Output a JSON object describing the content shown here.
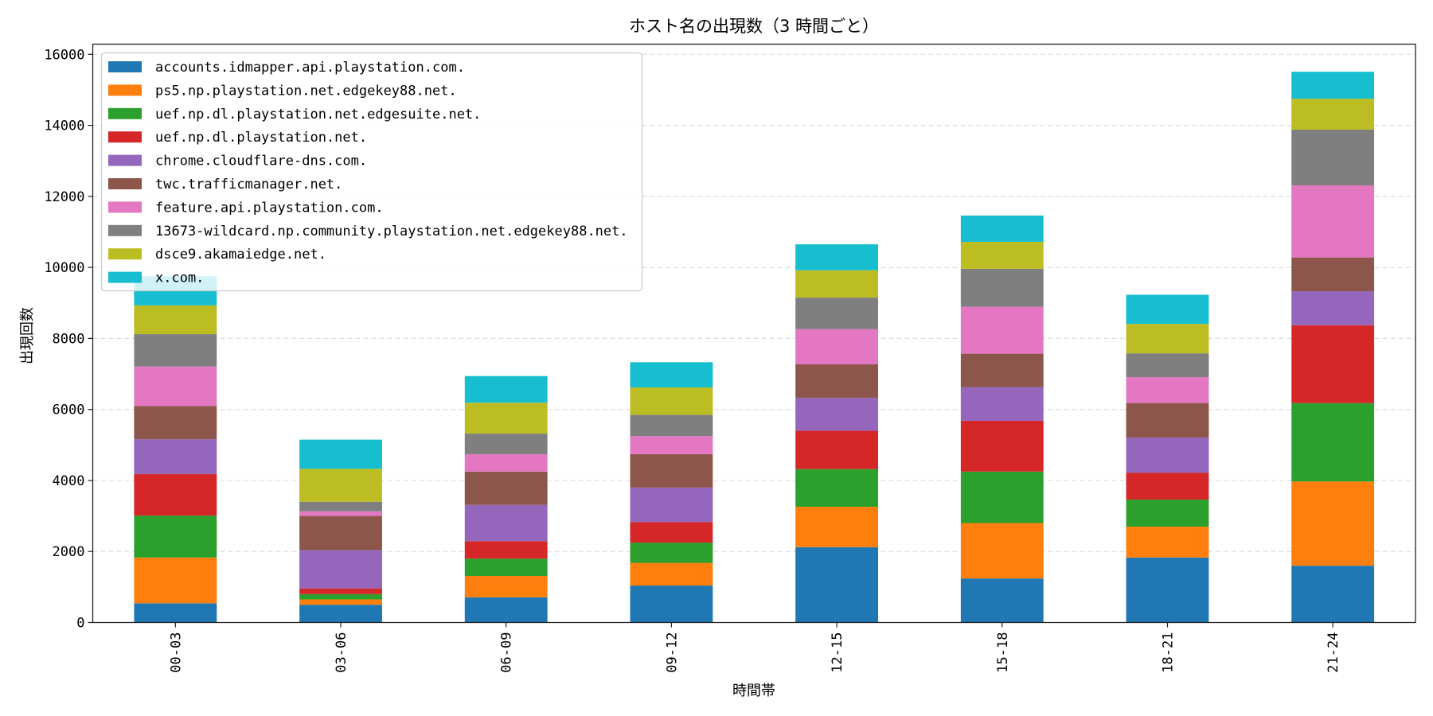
{
  "chart_data": {
    "type": "bar",
    "stacked": true,
    "title": "ホスト名の出現数（3 時間ごと）",
    "xlabel": "時間帯",
    "ylabel": "出現回数",
    "ylim": [
      0,
      16300
    ],
    "yticks": [
      0,
      2000,
      4000,
      6000,
      8000,
      10000,
      12000,
      14000,
      16000
    ],
    "grid": "y dashed",
    "legend_position": "top-left",
    "categories": [
      "00-03",
      "03-06",
      "06-09",
      "09-12",
      "12-15",
      "15-18",
      "18-21",
      "21-24"
    ],
    "series": [
      {
        "name": "accounts.idmapper.api.playstation.com.",
        "color": "#1f77b4",
        "values": [
          540,
          500,
          710,
          1040,
          2120,
          1240,
          1830,
          1600
        ]
      },
      {
        "name": "ps5.np.playstation.net.edgekey88.net.",
        "color": "#ff7f0e",
        "values": [
          1290,
          150,
          600,
          640,
          1140,
          1560,
          870,
          2370
        ]
      },
      {
        "name": "uef.np.dl.playstation.net.edgesuite.net.",
        "color": "#2ca02c",
        "values": [
          1180,
          150,
          490,
          570,
          1060,
          1450,
          760,
          2210
        ]
      },
      {
        "name": "uef.np.dl.playstation.net.",
        "color": "#d62728",
        "values": [
          1170,
          160,
          490,
          580,
          1080,
          1430,
          760,
          2190
        ]
      },
      {
        "name": "chrome.cloudflare-dns.com.",
        "color": "#9467bd",
        "values": [
          980,
          1080,
          1020,
          970,
          930,
          950,
          990,
          960
        ]
      },
      {
        "name": "twc.trafficmanager.net.",
        "color": "#8c564b",
        "values": [
          940,
          960,
          940,
          940,
          940,
          940,
          970,
          950
        ]
      },
      {
        "name": "feature.api.playstation.com.",
        "color": "#e377c2",
        "values": [
          1110,
          130,
          490,
          510,
          990,
          1320,
          730,
          2030
        ]
      },
      {
        "name": "13673-wildcard.np.community.playstation.net.edgekey88.net.",
        "color": "#7f7f7f",
        "values": [
          910,
          270,
          580,
          600,
          890,
          1070,
          670,
          1570
        ]
      },
      {
        "name": "dsce9.akamaiedge.net.",
        "color": "#bcbd22",
        "values": [
          810,
          930,
          870,
          770,
          770,
          760,
          830,
          870
        ]
      },
      {
        "name": "x.com.",
        "color": "#17becf",
        "values": [
          820,
          820,
          750,
          710,
          730,
          740,
          820,
          760
        ]
      }
    ]
  }
}
